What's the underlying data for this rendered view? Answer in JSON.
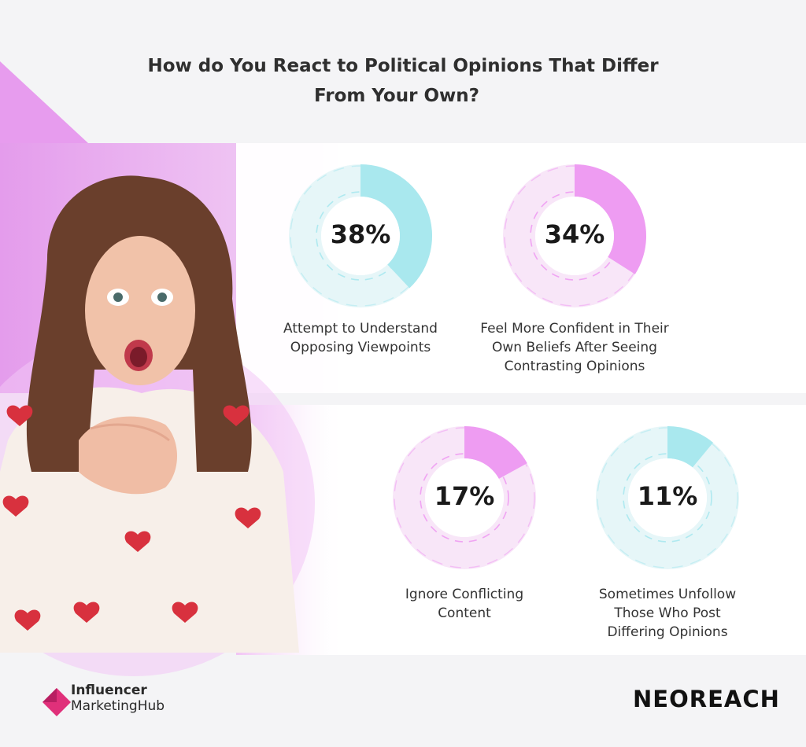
{
  "title_line1": "How do You React to Political Opinions That Differ",
  "title_line2": "From Your Own?",
  "chart_data": {
    "type": "pie",
    "title": "How do You React to Political Opinions That Differ From Your Own?",
    "unit": "%",
    "items": [
      {
        "label": "Attempt to Understand Opposing Viewpoints",
        "label_lines": [
          "Attempt to Understand",
          "Opposing Viewpoints"
        ],
        "value": 38,
        "display": "38%",
        "color": "#a9e8ee",
        "track": "#e6f6f8"
      },
      {
        "label": "Feel More Confident in Their Own Beliefs After Seeing Contrasting Opinions",
        "label_lines": [
          "Feel More Confident in Their",
          "Own Beliefs After Seeing",
          "Contrasting Opinions"
        ],
        "value": 34,
        "display": "34%",
        "color": "#ee9cf2",
        "track": "#f8e6f8"
      },
      {
        "label": "Ignore Conflicting Content",
        "label_lines": [
          "Ignore Conflicting",
          "Content"
        ],
        "value": 17,
        "display": "17%",
        "color": "#ee9cf2",
        "track": "#f8e6f8"
      },
      {
        "label": "Sometimes Unfollow Those Who Post Differing Opinions",
        "label_lines": [
          "Sometimes Unfollow",
          "Those Who Post",
          "Differing Opinions"
        ],
        "value": 11,
        "display": "11%",
        "color": "#a9e8ee",
        "track": "#e6f6f8"
      }
    ]
  },
  "brand_left": {
    "line1": "Influencer",
    "line2a": "Marketing",
    "line2b": "Hub",
    "accent": "#e0307a"
  },
  "brand_right": {
    "name": "NEOREACH"
  },
  "colors": {
    "pink_band": "#e7a2ee",
    "panel": "#ffffff"
  }
}
